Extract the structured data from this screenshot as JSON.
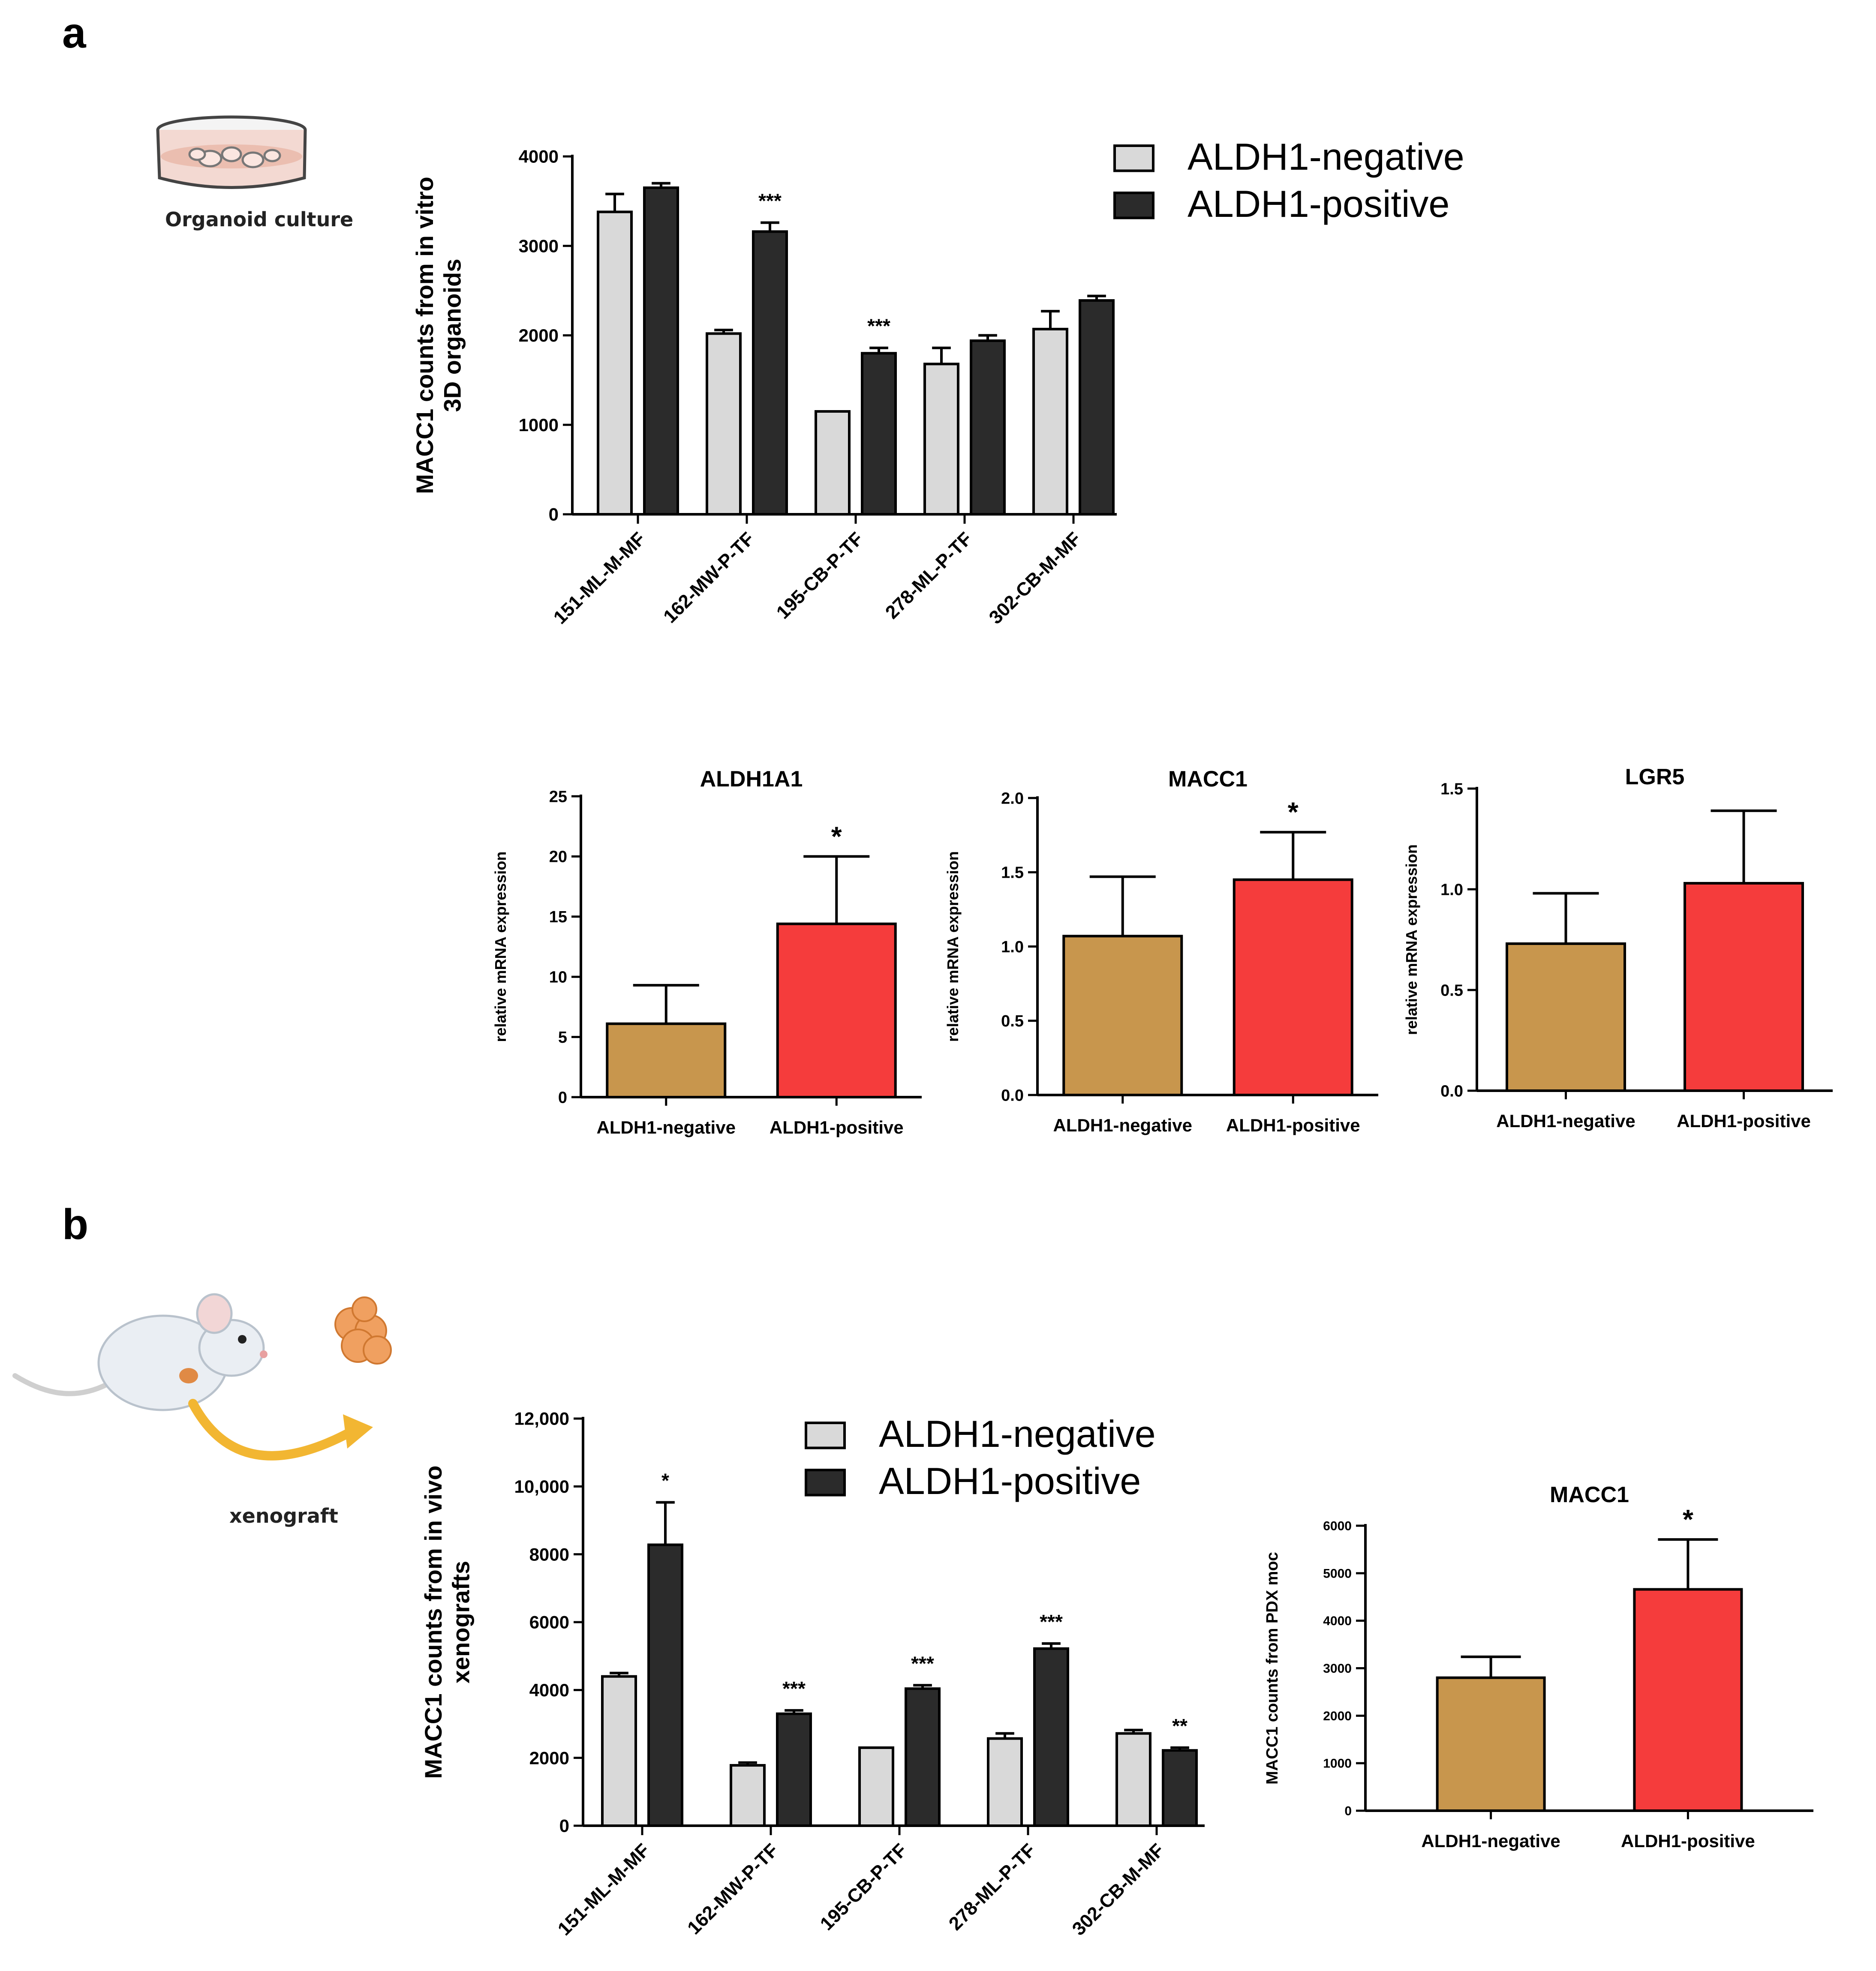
{
  "panels": {
    "a": "a",
    "b": "b"
  },
  "illustrations": {
    "organoid": {
      "label": "Organoid culture",
      "icon": "petri-dish-icon"
    },
    "xenograft": {
      "label": "xenograft",
      "icon": "mouse-icon"
    }
  },
  "colors": {
    "negative_bar": "#d9d9d9",
    "positive_bar": "#2b2b2b",
    "qpcr_negative": "#c8964d",
    "qpcr_positive": "#f53c3c",
    "axis": "#000000"
  },
  "chart_data": [
    {
      "id": "a_organoids",
      "type": "bar",
      "title": "",
      "ylabel_lines": [
        "MACC1 counts from in vitro",
        "3D organoids"
      ],
      "xlabel": "",
      "categories": [
        "151-ML-M-MF",
        "162-MW-P-TF",
        "195-CB-P-TF",
        "278-ML-P-TF",
        "302-CB-M-MF"
      ],
      "ylim": [
        0,
        4000
      ],
      "yticks": [
        0,
        1000,
        2000,
        3000,
        4000
      ],
      "ytick_labels": [
        "0",
        "1000",
        "2000",
        "3000",
        "4000"
      ],
      "series": [
        {
          "name": "ALDH1-negative",
          "color": "#d9d9d9",
          "values": [
            3380,
            2020,
            1150,
            1680,
            2070
          ],
          "errors": [
            200,
            40,
            0,
            180,
            200
          ]
        },
        {
          "name": "ALDH1-positive",
          "color": "#2b2b2b",
          "values": [
            3650,
            3160,
            1800,
            1940,
            2390
          ],
          "errors": [
            50,
            100,
            60,
            60,
            50
          ]
        }
      ],
      "annotations": [
        {
          "category": 1,
          "series": 1,
          "text": "***"
        },
        {
          "category": 2,
          "series": 1,
          "text": "***"
        }
      ],
      "legend": {
        "placement": "top-right",
        "entries": [
          "ALDH1-negative",
          "ALDH1-positive"
        ]
      },
      "grid": false
    },
    {
      "id": "a_aldh1a1",
      "type": "bar",
      "title": "ALDH1A1",
      "ylabel": "relative mRNA expression",
      "categories": [
        "ALDH1-negative",
        "ALDH1-positive"
      ],
      "values": [
        6.1,
        14.4
      ],
      "errors": [
        3.2,
        5.6
      ],
      "colors": [
        "#c8964d",
        "#f53c3c"
      ],
      "ylim": [
        0,
        25
      ],
      "yticks": [
        0,
        5,
        10,
        15,
        20,
        25
      ],
      "ytick_labels": [
        "0",
        "5",
        "10",
        "15",
        "20",
        "25"
      ],
      "annotations": [
        {
          "category": 1,
          "text": "*"
        }
      ],
      "grid": false
    },
    {
      "id": "a_macc1",
      "type": "bar",
      "title": "MACC1",
      "ylabel": "relative mRNA expression",
      "categories": [
        "ALDH1-negative",
        "ALDH1-positive"
      ],
      "values": [
        1.07,
        1.45
      ],
      "errors": [
        0.4,
        0.32
      ],
      "colors": [
        "#c8964d",
        "#f53c3c"
      ],
      "ylim": [
        0,
        2.0
      ],
      "yticks": [
        0,
        0.5,
        1.0,
        1.5,
        2.0
      ],
      "ytick_labels": [
        "0.0",
        "0.5",
        "1.0",
        "1.5",
        "2.0"
      ],
      "annotations": [
        {
          "category": 1,
          "text": "*"
        }
      ],
      "grid": false
    },
    {
      "id": "a_lgr5",
      "type": "bar",
      "title": "LGR5",
      "ylabel": "relative mRNA expression",
      "categories": [
        "ALDH1-negative",
        "ALDH1-positive"
      ],
      "values": [
        0.73,
        1.03
      ],
      "errors": [
        0.25,
        0.36
      ],
      "colors": [
        "#c8964d",
        "#f53c3c"
      ],
      "ylim": [
        0,
        1.5
      ],
      "yticks": [
        0,
        0.5,
        1.0,
        1.5
      ],
      "ytick_labels": [
        "0.0",
        "0.5",
        "1.0",
        "1.5"
      ],
      "annotations": [],
      "grid": false
    },
    {
      "id": "b_xenografts",
      "type": "bar",
      "title": "",
      "ylabel_lines": [
        "MACC1 counts from in vivo",
        "xenografts"
      ],
      "categories": [
        "151-ML-M-MF",
        "162-MW-P-TF",
        "195-CB-P-TF",
        "278-ML-P-TF",
        "302-CB-M-MF"
      ],
      "ylim": [
        0,
        12000
      ],
      "yticks": [
        0,
        2000,
        4000,
        6000,
        8000,
        10000,
        12000
      ],
      "ytick_labels": [
        "0",
        "2000",
        "4000",
        "6000",
        "8000",
        "10,000",
        "12,000"
      ],
      "series": [
        {
          "name": "ALDH1-negative",
          "color": "#d9d9d9",
          "values": [
            4400,
            1780,
            2300,
            2570,
            2720
          ],
          "errors": [
            100,
            80,
            0,
            150,
            100
          ]
        },
        {
          "name": "ALDH1-positive",
          "color": "#2b2b2b",
          "values": [
            8280,
            3300,
            4040,
            5220,
            2220
          ],
          "errors": [
            1250,
            100,
            100,
            150,
            80
          ]
        }
      ],
      "annotations": [
        {
          "category": 0,
          "series": 1,
          "text": "*"
        },
        {
          "category": 1,
          "series": 1,
          "text": "***"
        },
        {
          "category": 2,
          "series": 1,
          "text": "***"
        },
        {
          "category": 3,
          "series": 1,
          "text": "***"
        },
        {
          "category": 4,
          "series": 1,
          "text": "**"
        }
      ],
      "legend": {
        "placement": "top",
        "entries": [
          "ALDH1-negative",
          "ALDH1-positive"
        ]
      },
      "grid": false
    },
    {
      "id": "b_pdx",
      "type": "bar",
      "title": "MACC1",
      "ylabel": "MACC1 counts from PDX moc",
      "categories": [
        "ALDH1-negative",
        "ALDH1-positive"
      ],
      "values": [
        2800,
        4660
      ],
      "errors": [
        440,
        1050
      ],
      "colors": [
        "#c8964d",
        "#f53c3c"
      ],
      "ylim": [
        0,
        6000
      ],
      "yticks": [
        0,
        1000,
        2000,
        3000,
        4000,
        5000,
        6000
      ],
      "ytick_labels": [
        "0",
        "1000",
        "2000",
        "3000",
        "4000",
        "5000",
        "6000"
      ],
      "annotations": [
        {
          "category": 1,
          "text": "*"
        }
      ],
      "grid": false
    }
  ]
}
